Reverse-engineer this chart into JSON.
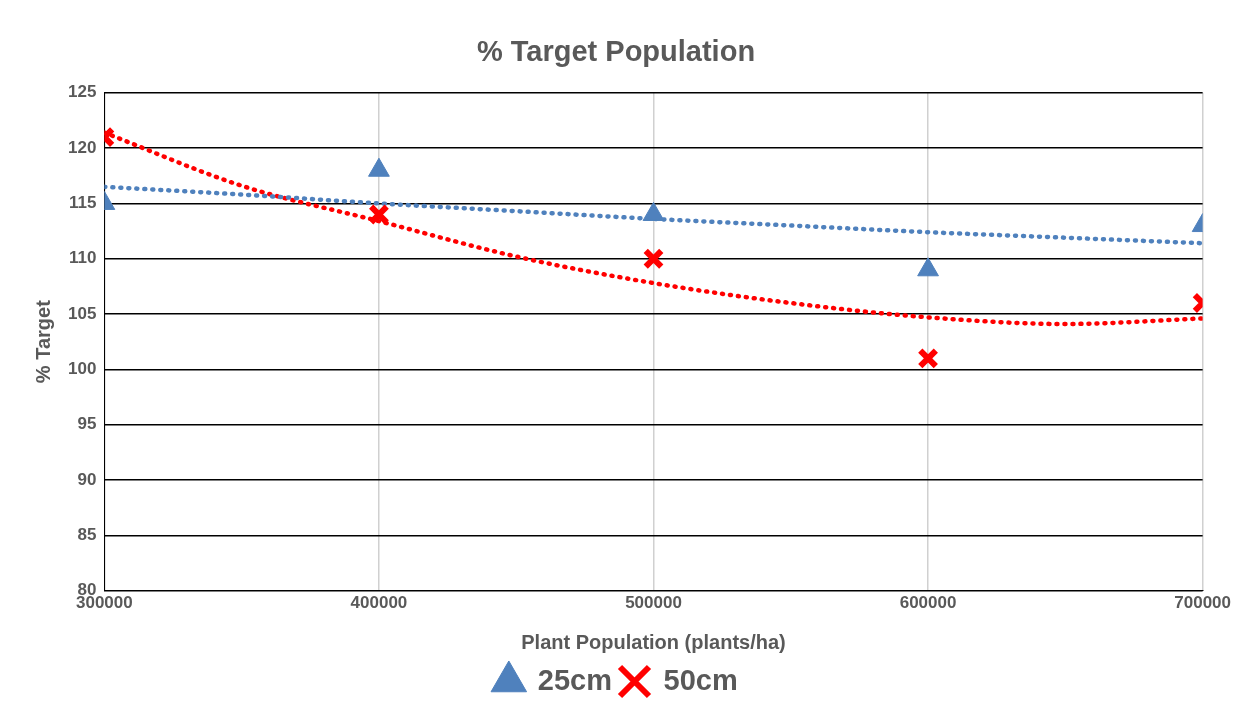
{
  "chart_data": {
    "type": "scatter",
    "title": "% Target Population",
    "xlabel": "Plant Population (plants/ha)",
    "ylabel": "% Target",
    "xlim": [
      300000,
      700000
    ],
    "xticks": [
      300000,
      400000,
      500000,
      600000,
      700000
    ],
    "ylim": [
      80,
      125
    ],
    "yticks": [
      80,
      85,
      90,
      95,
      100,
      105,
      110,
      115,
      120,
      125
    ],
    "grid": true,
    "legend": "bottom",
    "series": [
      {
        "name": "25cm",
        "color": "#4f81bd",
        "marker": "triangle",
        "x": [
          300000,
          400000,
          500000,
          600000,
          700000
        ],
        "values": [
          115,
          118,
          114,
          109,
          113
        ]
      },
      {
        "name": "50cm",
        "color": "#ff0000",
        "marker": "cross",
        "x": [
          300000,
          400000,
          500000,
          600000,
          700000
        ],
        "values": [
          121,
          114,
          110,
          101,
          106
        ]
      },
      {
        "type": "line",
        "color": "#4f81bd",
        "marker": "none",
        "line_style": "dotted",
        "x": [
          300000,
          350000,
          400000,
          450000,
          500000,
          550000,
          600000,
          650000,
          700000
        ],
        "values": [
          116.5,
          115.8,
          115.0,
          114.3,
          113.6,
          113.0,
          112.4,
          111.9,
          111.4
        ]
      },
      {
        "type": "line",
        "color": "#ff0000",
        "marker": "none",
        "line_style": "dotted",
        "x": [
          300000,
          350000,
          400000,
          450000,
          500000,
          550000,
          600000,
          650000,
          700000
        ],
        "values": [
          121.4,
          116.6,
          113.4,
          110.2,
          107.8,
          106.0,
          104.7,
          104.1,
          104.6
        ]
      }
    ]
  }
}
